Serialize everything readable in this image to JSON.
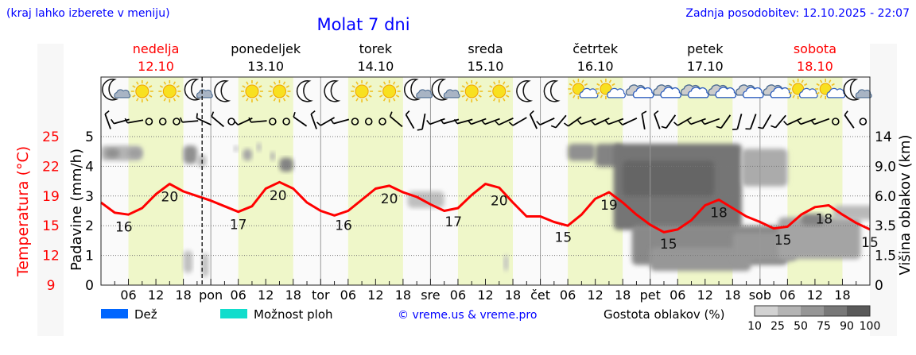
{
  "header": {
    "location_hint": "(kraj lahko izberete v meniju)",
    "title": "Molat 7 dni",
    "updated": "Zadnja posodobitev: 12.10.2025 - 22:07"
  },
  "days": [
    {
      "name": "nedelja",
      "date": "12.10",
      "weekend": true
    },
    {
      "name": "ponedeljek",
      "date": "13.10",
      "weekend": false
    },
    {
      "name": "torek",
      "date": "14.10",
      "weekend": false
    },
    {
      "name": "sreda",
      "date": "15.10",
      "weekend": false
    },
    {
      "name": "četrtek",
      "date": "16.10",
      "weekend": false
    },
    {
      "name": "petek",
      "date": "17.10",
      "weekend": false
    },
    {
      "name": "sobota",
      "date": "18.10",
      "weekend": true
    }
  ],
  "weather_icons": [
    [
      "moon-cloud",
      "sun",
      "sun",
      "moon-cloud"
    ],
    [
      "moon",
      "sun",
      "sun",
      "moon"
    ],
    [
      "moon",
      "sun",
      "sun",
      "moon-cloud"
    ],
    [
      "moon-cloud",
      "sun",
      "sun",
      "moon"
    ],
    [
      "moon",
      "sun-cloud",
      "sun-cloud",
      "clouds"
    ],
    [
      "clouds",
      "clouds",
      "clouds",
      "clouds"
    ],
    [
      "clouds",
      "sun-cloud",
      "sun-cloud",
      "moon-cloud"
    ]
  ],
  "wind": [
    70,
    -15,
    -10,
    null,
    null,
    null,
    -5,
    25,
    40,
    null,
    -25,
    -5,
    null,
    null,
    35,
    70,
    -30,
    -15,
    null,
    null,
    null,
    40,
    60,
    -80,
    -20,
    -15,
    -15,
    -20,
    -20,
    -25,
    -30,
    65,
    -25,
    -50,
    -35,
    -20,
    -25,
    -20,
    -25,
    80,
    70,
    -55,
    -30,
    -20,
    -20,
    -55,
    -75,
    -70,
    -60,
    -50,
    -25,
    -20,
    -20,
    null,
    55,
    null
  ],
  "colors": {
    "temperature": "#ff0000",
    "day_band": "#eff7c9",
    "rain": "#0066ff",
    "showers": "#11ddcc"
  },
  "chart_data": {
    "type": "line",
    "title": "Molat 7 dni",
    "x_unit": "hours from 12.10 00:00",
    "x_step_hours": 3,
    "temperature": [
      17.9,
      16.8,
      16.6,
      17.3,
      18.8,
      19.9,
      19.1,
      18.6,
      18.1,
      17.5,
      16.9,
      17.5,
      19.4,
      20.1,
      19.4,
      17.9,
      17.0,
      16.5,
      17.0,
      18.2,
      19.4,
      19.7,
      19.0,
      18.5,
      17.7,
      17.0,
      17.3,
      18.7,
      19.9,
      19.5,
      17.9,
      16.4,
      16.4,
      15.8,
      15.4,
      16.6,
      18.3,
      19.0,
      17.9,
      16.6,
      15.5,
      14.7,
      15.0,
      16.0,
      17.6,
      18.2,
      17.3,
      16.4,
      15.8,
      15.1,
      15.3,
      16.6,
      17.4,
      17.6,
      16.6,
      15.7,
      15.0
    ],
    "temperature_labels": [
      {
        "t": 5,
        "v": "16"
      },
      {
        "t": 15,
        "v": "20"
      },
      {
        "t": 30,
        "v": "17"
      },
      {
        "t": 38.7,
        "v": "20"
      },
      {
        "t": 53,
        "v": "16"
      },
      {
        "t": 63,
        "v": "20"
      },
      {
        "t": 77,
        "v": "17"
      },
      {
        "t": 87,
        "v": "20"
      },
      {
        "t": 101,
        "v": "15"
      },
      {
        "t": 111,
        "v": "19"
      },
      {
        "t": 124,
        "v": "15"
      },
      {
        "t": 135,
        "v": "18"
      },
      {
        "t": 149,
        "v": "15"
      },
      {
        "t": 158,
        "v": "18"
      },
      {
        "t": 168,
        "v": "15"
      }
    ],
    "now_hour": 22.1,
    "cloud_patches": [
      [
        0,
        9,
        10,
        12.5,
        35
      ],
      [
        1,
        4,
        10.5,
        12,
        60
      ],
      [
        6,
        9,
        10.5,
        12,
        50
      ],
      [
        18,
        21,
        9.5,
        12.5,
        60
      ],
      [
        21,
        23,
        9,
        11,
        30
      ],
      [
        18,
        20,
        0.6,
        1.8,
        25
      ],
      [
        22,
        23.5,
        0.4,
        1.6,
        25
      ],
      [
        29,
        30,
        11.5,
        12.5,
        25
      ],
      [
        31,
        33,
        10,
        12,
        45
      ],
      [
        34,
        35,
        11.5,
        13,
        30
      ],
      [
        37,
        38,
        10,
        11.5,
        40
      ],
      [
        39,
        42,
        8.5,
        10.5,
        70
      ],
      [
        67,
        75,
        5,
        6.5,
        25
      ],
      [
        88,
        89,
        0.7,
        1.5,
        25
      ],
      [
        102,
        108,
        10,
        12.8,
        60
      ],
      [
        108,
        114,
        9,
        12.8,
        70
      ],
      [
        112,
        140,
        3.2,
        12.8,
        80
      ],
      [
        114,
        134,
        6,
        10,
        92
      ],
      [
        116,
        150,
        1,
        3.5,
        65
      ],
      [
        120,
        142,
        0.7,
        2,
        55
      ],
      [
        138,
        152,
        1.2,
        3,
        55
      ],
      [
        140,
        150,
        7,
        12,
        40
      ],
      [
        148,
        166,
        1.3,
        4.2,
        45
      ],
      [
        153,
        158,
        3.5,
        4.5,
        70
      ],
      [
        160,
        172,
        4,
        5.2,
        30
      ],
      [
        174,
        180,
        4,
        4.6,
        25
      ],
      [
        176,
        178,
        5.5,
        6.5,
        25
      ],
      [
        184,
        191,
        5,
        6.5,
        25
      ]
    ],
    "left_axis": {
      "label": "Temperatura (°C)",
      "ticks": [
        "25",
        "22",
        "19",
        "15",
        "12",
        "9"
      ],
      "range": [
        9,
        25
      ]
    },
    "precip_axis": {
      "label": "Padavine (mm/h)",
      "ticks": [
        "5",
        "4",
        "3",
        "2",
        "1",
        "0"
      ],
      "range": [
        0,
        5
      ]
    },
    "right_axis": {
      "label": "Višina oblakov (km)",
      "ticks": [
        "14",
        "9.0",
        "6.0",
        "3.5",
        "1.5",
        "0"
      ]
    },
    "x_ticks": [
      "06",
      "12",
      "18",
      "pon",
      "06",
      "12",
      "18",
      "tor",
      "06",
      "12",
      "18",
      "sre",
      "06",
      "12",
      "18",
      "čet",
      "06",
      "12",
      "18",
      "pet",
      "06",
      "12",
      "18",
      "sob",
      "06",
      "12",
      "18"
    ]
  },
  "legend": {
    "rain": "Dež",
    "showers": "Možnost ploh",
    "credit": "© vreme.us & vreme.pro",
    "cloud_density": "Gostota oblakov (%)",
    "cloud_scale": [
      "10",
      "25",
      "50",
      "75",
      "90",
      "100"
    ]
  }
}
